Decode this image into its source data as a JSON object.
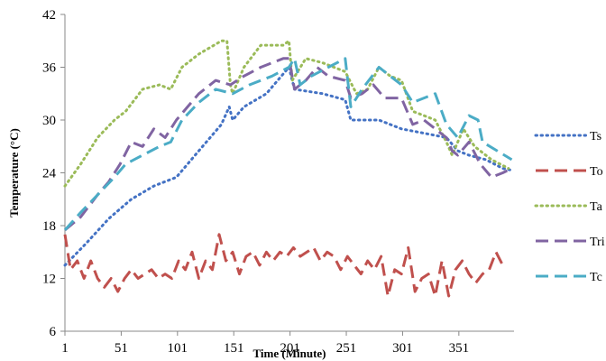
{
  "chart_data": {
    "type": "line",
    "xlabel": "Time (Minute)",
    "ylabel": "Temperature (°C)",
    "xlim": [
      1,
      400
    ],
    "ylim": [
      6,
      42
    ],
    "x_ticks": [
      "1",
      "51",
      "101",
      "151",
      "201",
      "251",
      "301",
      "351"
    ],
    "y_ticks": [
      "6",
      "12",
      "18",
      "24",
      "30",
      "36",
      "42"
    ],
    "legend_position": "right",
    "grid": false,
    "series": [
      {
        "name": "Ts",
        "color": "#4472c4",
        "dash": "dotted",
        "points": [
          [
            1,
            13.5
          ],
          [
            20,
            16
          ],
          [
            40,
            18.8
          ],
          [
            60,
            21
          ],
          [
            80,
            22.5
          ],
          [
            100,
            23.5
          ],
          [
            120,
            26.5
          ],
          [
            140,
            29.5
          ],
          [
            147,
            31.5
          ],
          [
            150,
            30
          ],
          [
            160,
            31.5
          ],
          [
            180,
            33
          ],
          [
            200,
            36
          ],
          [
            205,
            33.5
          ],
          [
            230,
            33
          ],
          [
            250,
            32.3
          ],
          [
            255,
            30
          ],
          [
            280,
            30
          ],
          [
            300,
            29
          ],
          [
            320,
            28.5
          ],
          [
            340,
            28
          ],
          [
            350,
            26.5
          ],
          [
            360,
            26
          ],
          [
            375,
            25.5
          ],
          [
            390,
            24.5
          ],
          [
            398,
            24.3
          ]
        ]
      },
      {
        "name": "To",
        "color": "#c0504d",
        "dash": "dashed",
        "points": [
          [
            1,
            17
          ],
          [
            6,
            13
          ],
          [
            12,
            14
          ],
          [
            18,
            12
          ],
          [
            24,
            14
          ],
          [
            30,
            12
          ],
          [
            36,
            11
          ],
          [
            42,
            12
          ],
          [
            48,
            10.5
          ],
          [
            54,
            12
          ],
          [
            60,
            13
          ],
          [
            66,
            12
          ],
          [
            72,
            12.5
          ],
          [
            78,
            13
          ],
          [
            84,
            12
          ],
          [
            90,
            12.5
          ],
          [
            96,
            12
          ],
          [
            102,
            14
          ],
          [
            108,
            13
          ],
          [
            114,
            15
          ],
          [
            120,
            12
          ],
          [
            126,
            14
          ],
          [
            132,
            13
          ],
          [
            138,
            17
          ],
          [
            144,
            14
          ],
          [
            150,
            15
          ],
          [
            156,
            12.5
          ],
          [
            162,
            14.5
          ],
          [
            168,
            15
          ],
          [
            174,
            13.5
          ],
          [
            180,
            15
          ],
          [
            186,
            14
          ],
          [
            192,
            15
          ],
          [
            198,
            14.5
          ],
          [
            204,
            15.5
          ],
          [
            210,
            14.5
          ],
          [
            216,
            15
          ],
          [
            222,
            15.5
          ],
          [
            228,
            14
          ],
          [
            234,
            15
          ],
          [
            240,
            14.5
          ],
          [
            246,
            13
          ],
          [
            252,
            14.5
          ],
          [
            258,
            13.5
          ],
          [
            264,
            12.5
          ],
          [
            270,
            14
          ],
          [
            276,
            13
          ],
          [
            282,
            14.5
          ],
          [
            288,
            10
          ],
          [
            294,
            13
          ],
          [
            300,
            12.5
          ],
          [
            306,
            15.5
          ],
          [
            312,
            10.5
          ],
          [
            318,
            12
          ],
          [
            324,
            12.5
          ],
          [
            330,
            10
          ],
          [
            336,
            14
          ],
          [
            342,
            10
          ],
          [
            348,
            13
          ],
          [
            354,
            14
          ],
          [
            360,
            12.5
          ],
          [
            366,
            11.5
          ],
          [
            372,
            12.5
          ],
          [
            378,
            13
          ],
          [
            384,
            15
          ],
          [
            390,
            13.5
          ]
        ]
      },
      {
        "name": "Ta",
        "color": "#9bbb59",
        "dash": "dotted",
        "points": [
          [
            1,
            22.5
          ],
          [
            15,
            25
          ],
          [
            30,
            28
          ],
          [
            45,
            30
          ],
          [
            55,
            31
          ],
          [
            70,
            33.5
          ],
          [
            85,
            34
          ],
          [
            95,
            33.5
          ],
          [
            105,
            36
          ],
          [
            120,
            37.5
          ],
          [
            140,
            39
          ],
          [
            145,
            39
          ],
          [
            148,
            34
          ],
          [
            150,
            33
          ],
          [
            160,
            36
          ],
          [
            175,
            38.5
          ],
          [
            195,
            38.5
          ],
          [
            200,
            39
          ],
          [
            203,
            34.5
          ],
          [
            215,
            37
          ],
          [
            230,
            36.5
          ],
          [
            250,
            35.5
          ],
          [
            260,
            33
          ],
          [
            270,
            33.5
          ],
          [
            280,
            36
          ],
          [
            290,
            35
          ],
          [
            300,
            34.5
          ],
          [
            310,
            31
          ],
          [
            320,
            30.5
          ],
          [
            330,
            30
          ],
          [
            340,
            27.5
          ],
          [
            345,
            26
          ],
          [
            355,
            29
          ],
          [
            365,
            27
          ],
          [
            380,
            25.5
          ],
          [
            395,
            24.5
          ]
        ]
      },
      {
        "name": "Tri",
        "color": "#8064a2",
        "dash": "dashed",
        "points": [
          [
            1,
            17.5
          ],
          [
            15,
            19
          ],
          [
            30,
            21.5
          ],
          [
            40,
            23
          ],
          [
            50,
            25
          ],
          [
            60,
            27.5
          ],
          [
            70,
            27
          ],
          [
            80,
            29
          ],
          [
            90,
            28
          ],
          [
            100,
            30
          ],
          [
            110,
            31.5
          ],
          [
            120,
            33
          ],
          [
            135,
            34.5
          ],
          [
            148,
            34
          ],
          [
            160,
            35
          ],
          [
            175,
            36
          ],
          [
            195,
            37
          ],
          [
            200,
            37
          ],
          [
            205,
            33.5
          ],
          [
            215,
            34.5
          ],
          [
            225,
            36
          ],
          [
            235,
            35
          ],
          [
            250,
            34.5
          ],
          [
            255,
            32.5
          ],
          [
            265,
            33
          ],
          [
            275,
            34
          ],
          [
            285,
            32.5
          ],
          [
            300,
            32.5
          ],
          [
            310,
            29.5
          ],
          [
            320,
            30
          ],
          [
            330,
            29
          ],
          [
            340,
            28
          ],
          [
            345,
            26.5
          ],
          [
            350,
            26
          ],
          [
            360,
            27.5
          ],
          [
            370,
            25
          ],
          [
            380,
            23.5
          ],
          [
            390,
            24
          ],
          [
            398,
            24.5
          ]
        ]
      },
      {
        "name": "Tc",
        "color": "#4bacc6",
        "dash": "dashed",
        "points": [
          [
            1,
            17.5
          ],
          [
            15,
            19.5
          ],
          [
            30,
            21.5
          ],
          [
            45,
            23.5
          ],
          [
            55,
            25
          ],
          [
            70,
            26
          ],
          [
            85,
            27
          ],
          [
            95,
            27.5
          ],
          [
            105,
            30
          ],
          [
            120,
            32
          ],
          [
            135,
            33.5
          ],
          [
            150,
            33
          ],
          [
            165,
            34
          ],
          [
            185,
            35
          ],
          [
            200,
            36
          ],
          [
            205,
            37
          ],
          [
            210,
            34
          ],
          [
            220,
            35
          ],
          [
            235,
            36
          ],
          [
            250,
            37
          ],
          [
            255,
            31.5
          ],
          [
            265,
            33.5
          ],
          [
            280,
            36
          ],
          [
            290,
            35
          ],
          [
            300,
            34
          ],
          [
            310,
            32
          ],
          [
            320,
            32.5
          ],
          [
            330,
            33
          ],
          [
            340,
            29.5
          ],
          [
            350,
            28
          ],
          [
            360,
            30.5
          ],
          [
            368,
            30
          ],
          [
            372,
            27.5
          ],
          [
            385,
            26.5
          ],
          [
            398,
            25.5
          ]
        ]
      }
    ]
  }
}
